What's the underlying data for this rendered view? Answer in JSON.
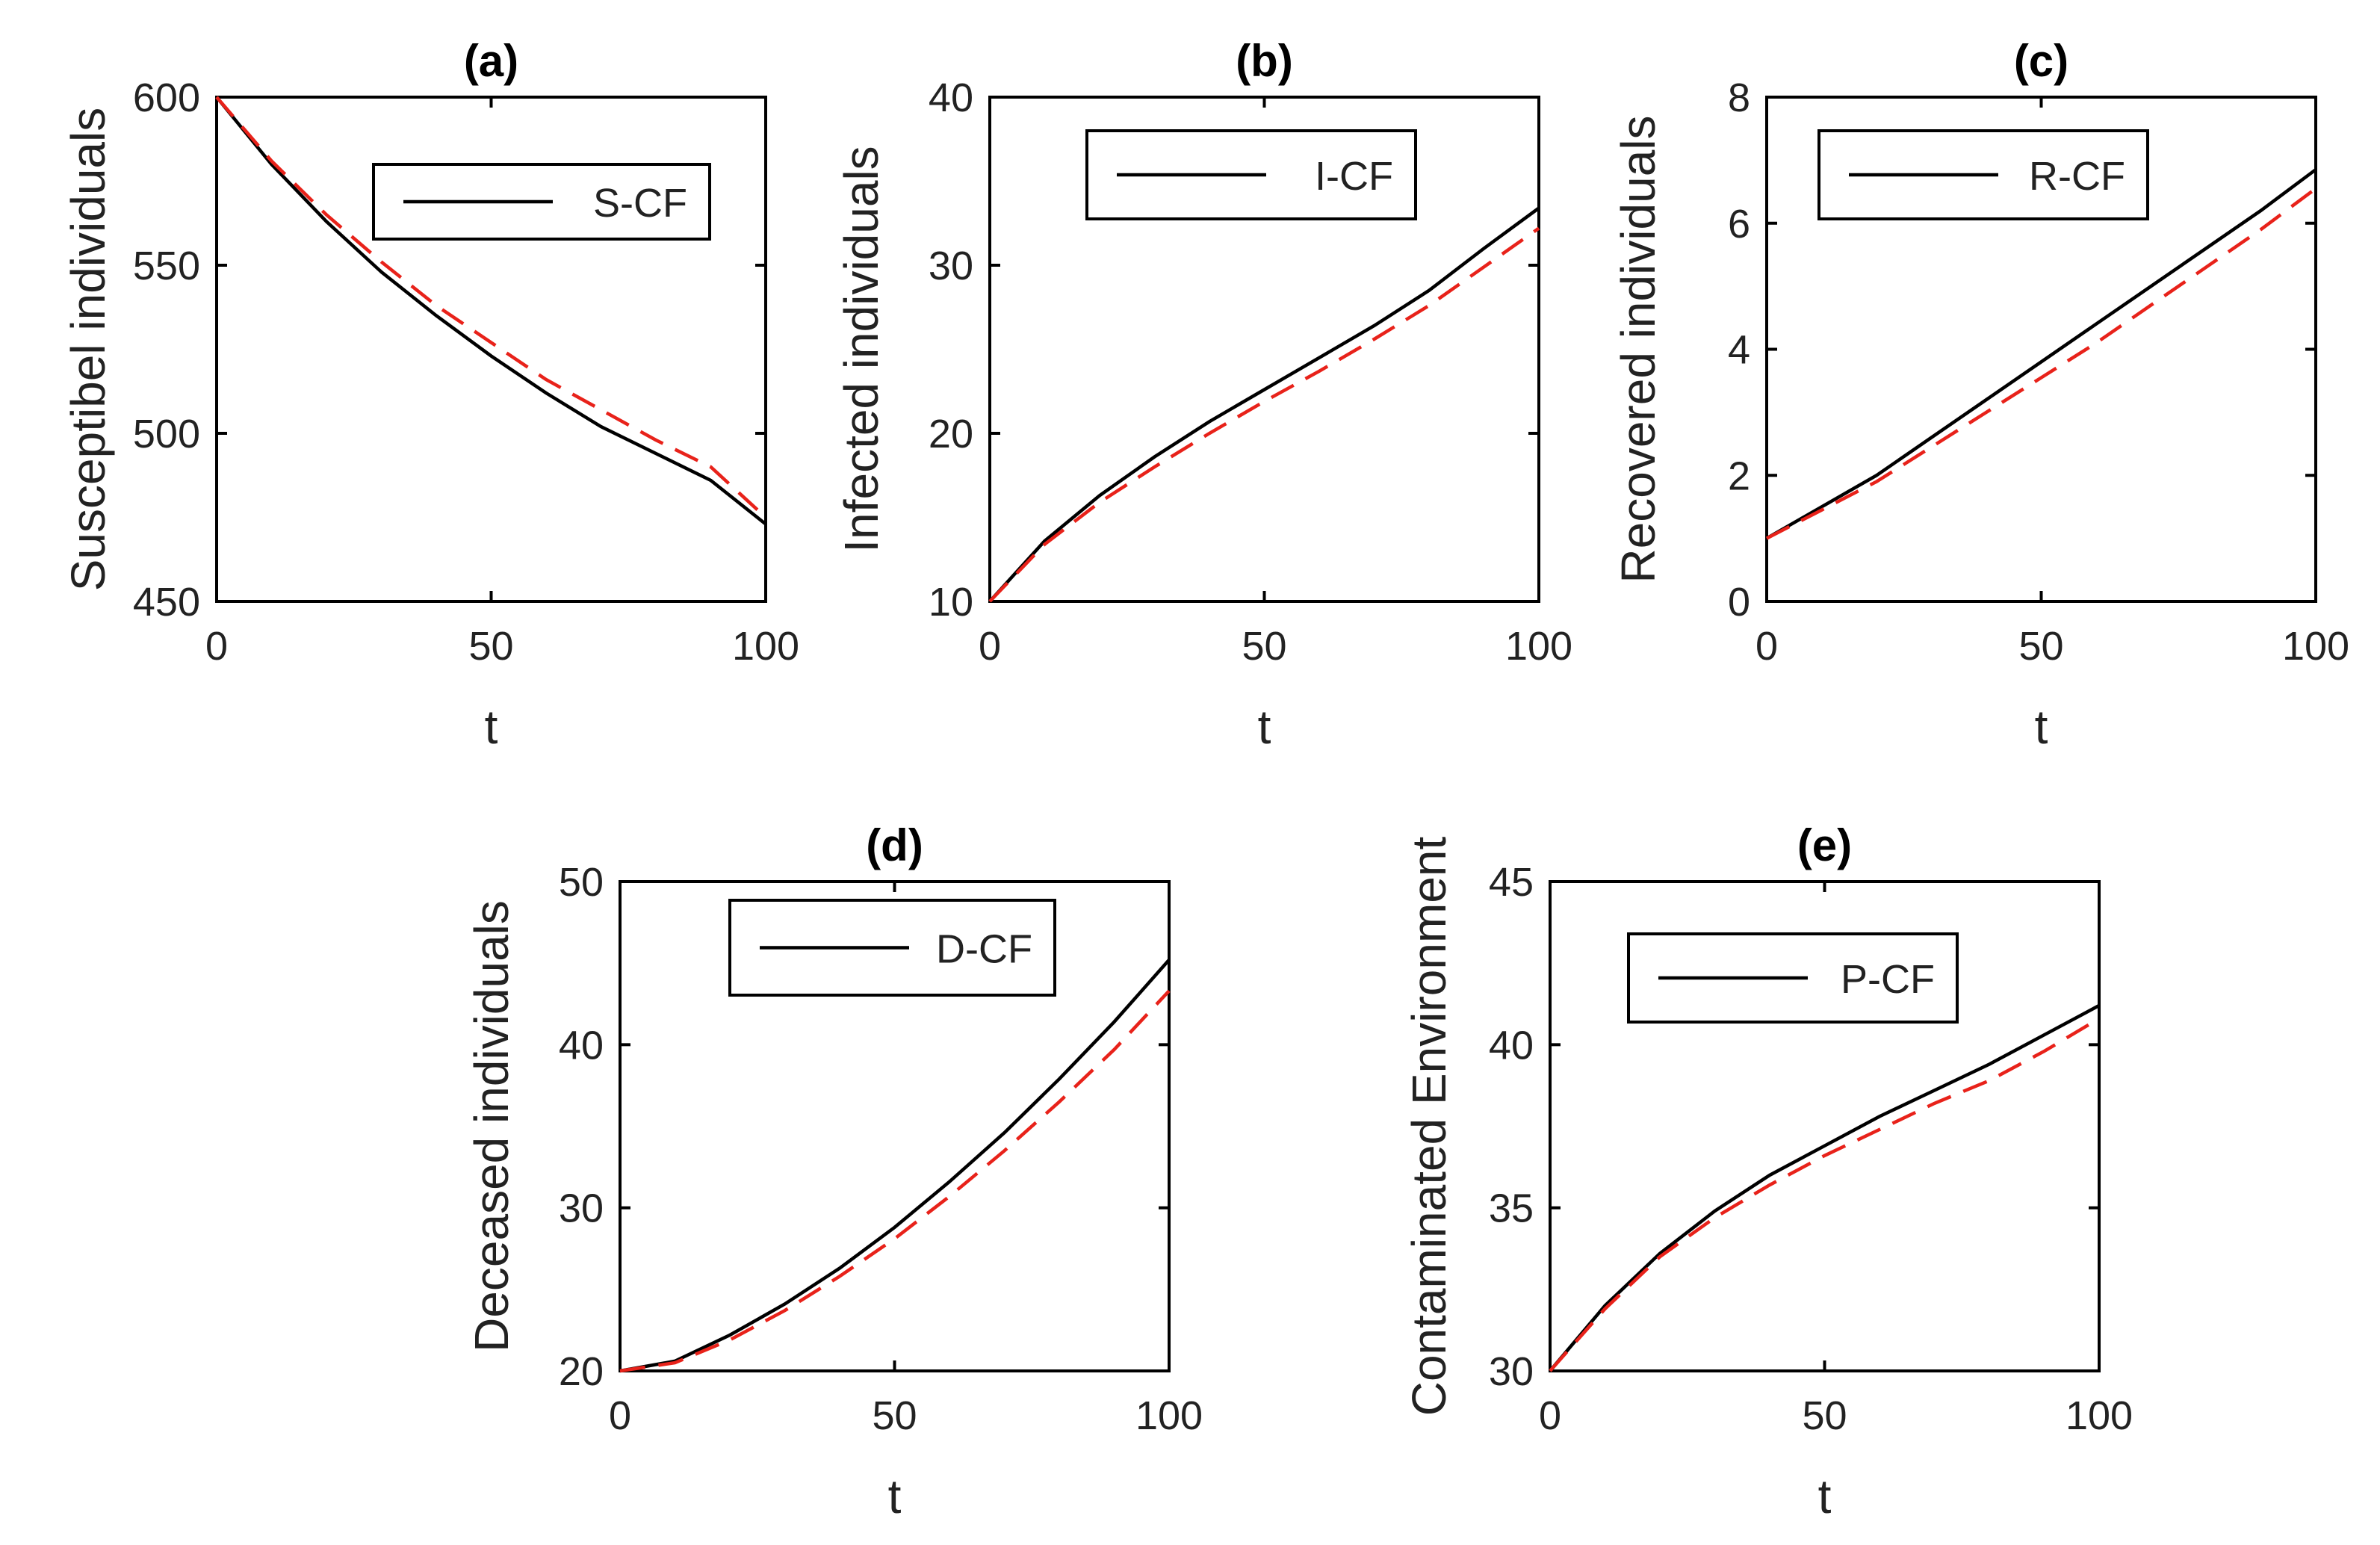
{
  "colors": {
    "cf": "#000000",
    "dashed": "#e8221a"
  },
  "chart_data": [
    {
      "id": "a",
      "type": "line",
      "title": "(a)",
      "xlabel": "t",
      "ylabel": "Susceptibel individuals",
      "xlim": [
        0,
        100
      ],
      "ylim": [
        450,
        600
      ],
      "xticks": [
        0,
        50,
        100
      ],
      "yticks": [
        450,
        500,
        550,
        600
      ],
      "legend": {
        "label": "S-CF",
        "placement": "top-right"
      },
      "x": [
        0,
        10,
        20,
        30,
        40,
        50,
        60,
        70,
        80,
        90,
        100
      ],
      "series": [
        {
          "name": "S-CF",
          "style": "solid",
          "values": [
            600,
            580,
            563,
            548,
            535,
            523,
            512,
            502,
            494,
            486,
            473
          ]
        },
        {
          "name": "",
          "style": "dashed",
          "values": [
            600,
            581,
            565,
            551,
            538,
            527,
            516,
            507,
            498,
            490,
            475
          ]
        }
      ]
    },
    {
      "id": "b",
      "type": "line",
      "title": "(b)",
      "xlabel": "t",
      "ylabel": "Infected individuals",
      "xlim": [
        0,
        100
      ],
      "ylim": [
        10,
        40
      ],
      "xticks": [
        0,
        50,
        100
      ],
      "yticks": [
        10,
        20,
        30,
        40
      ],
      "legend": {
        "label": "I-CF",
        "placement": "top-left"
      },
      "x": [
        0,
        10,
        20,
        30,
        40,
        50,
        60,
        70,
        80,
        90,
        100
      ],
      "series": [
        {
          "name": "I-CF",
          "style": "solid",
          "values": [
            10,
            13.6,
            16.3,
            18.6,
            20.7,
            22.6,
            24.5,
            26.4,
            28.5,
            31.0,
            33.4
          ]
        },
        {
          "name": "",
          "style": "dashed",
          "values": [
            10,
            13.4,
            15.9,
            18.0,
            20.0,
            21.9,
            23.7,
            25.6,
            27.6,
            29.9,
            32.2
          ]
        }
      ]
    },
    {
      "id": "c",
      "type": "line",
      "title": "(c)",
      "xlabel": "t",
      "ylabel": "Recovered individuals",
      "xlim": [
        0,
        100
      ],
      "ylim": [
        0,
        8
      ],
      "xticks": [
        0,
        50,
        100
      ],
      "yticks": [
        0,
        2,
        4,
        6,
        8
      ],
      "legend": {
        "label": "R-CF",
        "placement": "top"
      },
      "x": [
        0,
        10,
        20,
        30,
        40,
        50,
        60,
        70,
        80,
        90,
        100
      ],
      "series": [
        {
          "name": "R-CF",
          "style": "solid",
          "values": [
            1.0,
            1.5,
            2.0,
            2.6,
            3.2,
            3.8,
            4.4,
            5.0,
            5.6,
            6.2,
            6.85
          ]
        },
        {
          "name": "",
          "style": "dashed",
          "values": [
            1.0,
            1.45,
            1.9,
            2.45,
            3.0,
            3.55,
            4.1,
            4.7,
            5.3,
            5.9,
            6.55
          ]
        }
      ]
    },
    {
      "id": "d",
      "type": "line",
      "title": "(d)",
      "xlabel": "t",
      "ylabel": "Deceased individuals",
      "xlim": [
        0,
        100
      ],
      "ylim": [
        20,
        50
      ],
      "xticks": [
        0,
        50,
        100
      ],
      "yticks": [
        20,
        30,
        40,
        50
      ],
      "legend": {
        "label": "D-CF",
        "placement": "top-right"
      },
      "x": [
        0,
        10,
        20,
        30,
        40,
        50,
        60,
        70,
        80,
        90,
        100
      ],
      "series": [
        {
          "name": "D-CF",
          "style": "solid",
          "values": [
            20,
            20.6,
            22.2,
            24.1,
            26.3,
            28.8,
            31.6,
            34.6,
            37.9,
            41.4,
            45.2
          ]
        },
        {
          "name": "",
          "style": "dashed",
          "values": [
            20,
            20.5,
            21.9,
            23.7,
            25.8,
            28.1,
            30.7,
            33.5,
            36.5,
            39.7,
            43.3
          ]
        }
      ]
    },
    {
      "id": "e",
      "type": "line",
      "title": "(e)",
      "xlabel": "t",
      "ylabel": "Contaminated Environment",
      "xlim": [
        0,
        100
      ],
      "ylim": [
        30,
        45
      ],
      "xticks": [
        0,
        50,
        100
      ],
      "yticks": [
        30,
        35,
        40,
        45
      ],
      "legend": {
        "label": "P-CF",
        "placement": "top-right"
      },
      "x": [
        0,
        10,
        20,
        30,
        40,
        50,
        60,
        70,
        80,
        90,
        100
      ],
      "series": [
        {
          "name": "P-CF",
          "style": "solid",
          "values": [
            30,
            32.0,
            33.6,
            34.9,
            36.0,
            36.9,
            37.8,
            38.6,
            39.4,
            40.3,
            41.2
          ]
        },
        {
          "name": "",
          "style": "dashed",
          "values": [
            30,
            31.9,
            33.5,
            34.7,
            35.7,
            36.6,
            37.4,
            38.2,
            38.9,
            39.8,
            40.8
          ]
        }
      ]
    }
  ]
}
